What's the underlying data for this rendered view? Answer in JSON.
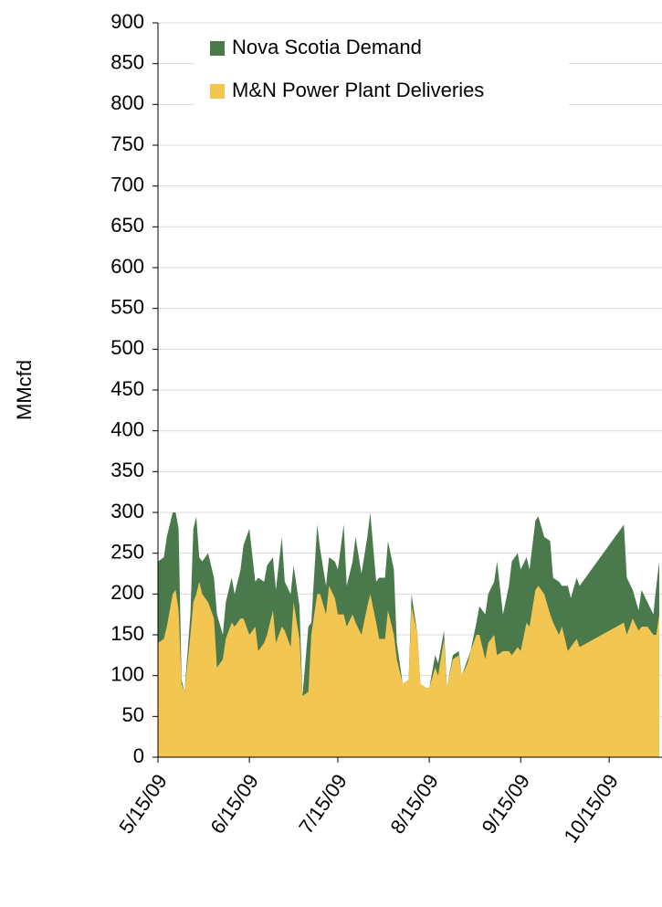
{
  "chart_data": {
    "type": "area",
    "y_label": "MMcfd",
    "x": [
      "2009-05-15",
      "2009-05-17",
      "2009-05-18",
      "2009-05-20",
      "2009-05-21",
      "2009-05-22",
      "2009-05-23",
      "2009-05-24",
      "2009-05-26",
      "2009-05-27",
      "2009-05-28",
      "2009-05-29",
      "2009-05-30",
      "2009-06-01",
      "2009-06-03",
      "2009-06-04",
      "2009-06-06",
      "2009-06-07",
      "2009-06-09",
      "2009-06-10",
      "2009-06-12",
      "2009-06-13",
      "2009-06-15",
      "2009-06-17",
      "2009-06-18",
      "2009-06-20",
      "2009-06-21",
      "2009-06-23",
      "2009-06-24",
      "2009-06-26",
      "2009-06-27",
      "2009-06-29",
      "2009-06-30",
      "2009-07-02",
      "2009-07-03",
      "2009-07-05",
      "2009-07-06",
      "2009-07-08",
      "2009-07-09",
      "2009-07-11",
      "2009-07-12",
      "2009-07-14",
      "2009-07-15",
      "2009-07-17",
      "2009-07-18",
      "2009-07-20",
      "2009-07-21",
      "2009-07-23",
      "2009-07-25",
      "2009-07-26",
      "2009-07-28",
      "2009-07-29",
      "2009-07-31",
      "2009-08-01",
      "2009-08-03",
      "2009-08-04",
      "2009-08-06",
      "2009-08-08",
      "2009-08-09",
      "2009-08-11",
      "2009-08-12",
      "2009-08-14",
      "2009-08-15",
      "2009-08-17",
      "2009-08-18",
      "2009-08-20",
      "2009-08-21",
      "2009-08-23",
      "2009-08-25",
      "2009-08-26",
      "2009-08-28",
      "2009-08-29",
      "2009-08-31",
      "2009-09-01",
      "2009-09-03",
      "2009-09-04",
      "2009-09-06",
      "2009-09-07",
      "2009-09-09",
      "2009-09-11",
      "2009-09-12",
      "2009-09-14",
      "2009-09-15",
      "2009-09-17",
      "2009-09-18",
      "2009-09-20",
      "2009-09-21",
      "2009-09-23",
      "2009-09-25",
      "2009-09-26",
      "2009-09-28",
      "2009-09-29",
      "2009-10-01",
      "2009-10-02",
      "2009-10-04",
      "2009-10-05",
      "2009-10-20",
      "2009-10-21",
      "2009-10-23",
      "2009-10-25",
      "2009-10-26",
      "2009-10-28",
      "2009-10-30",
      "2009-10-31",
      "2009-11-01"
    ],
    "series": [
      {
        "name": "Nova Scotia Demand",
        "color": "#4a7a4c",
        "values": [
          240,
          245,
          270,
          300,
          300,
          280,
          95,
          80,
          175,
          280,
          295,
          245,
          240,
          250,
          220,
          175,
          150,
          190,
          220,
          200,
          230,
          260,
          280,
          215,
          220,
          215,
          235,
          245,
          205,
          270,
          215,
          200,
          235,
          185,
          75,
          160,
          165,
          285,
          255,
          210,
          245,
          240,
          230,
          285,
          210,
          240,
          270,
          225,
          270,
          300,
          215,
          220,
          220,
          265,
          230,
          140,
          90,
          95,
          200,
          150,
          90,
          85,
          85,
          125,
          115,
          155,
          85,
          125,
          130,
          100,
          120,
          130,
          165,
          185,
          175,
          200,
          215,
          240,
          175,
          210,
          240,
          250,
          230,
          245,
          230,
          290,
          295,
          270,
          265,
          220,
          215,
          210,
          210,
          195,
          220,
          210,
          285,
          220,
          205,
          180,
          205,
          190,
          175,
          210,
          240
        ]
      },
      {
        "name": "M&N Power Plant Deliveries",
        "color": "#f3c652",
        "values": [
          140,
          145,
          160,
          200,
          205,
          180,
          90,
          80,
          150,
          190,
          200,
          215,
          200,
          190,
          170,
          110,
          120,
          145,
          165,
          160,
          170,
          170,
          150,
          160,
          130,
          140,
          150,
          180,
          140,
          160,
          155,
          135,
          190,
          145,
          75,
          80,
          150,
          200,
          200,
          175,
          210,
          195,
          175,
          175,
          160,
          175,
          165,
          150,
          185,
          200,
          165,
          145,
          145,
          180,
          150,
          120,
          90,
          95,
          185,
          150,
          90,
          85,
          85,
          110,
          100,
          145,
          85,
          120,
          125,
          100,
          115,
          130,
          150,
          150,
          120,
          140,
          150,
          125,
          130,
          130,
          125,
          135,
          130,
          165,
          160,
          205,
          210,
          200,
          175,
          165,
          150,
          160,
          130,
          135,
          145,
          135,
          165,
          150,
          170,
          155,
          160,
          160,
          150,
          150,
          175
        ]
      }
    ],
    "xlim": [
      "2009-05-15",
      "2009-11-01"
    ],
    "xticks": [
      {
        "value": "2009-05-15",
        "label": "5/15/09"
      },
      {
        "value": "2009-06-15",
        "label": "6/15/09"
      },
      {
        "value": "2009-07-15",
        "label": "7/15/09"
      },
      {
        "value": "2009-08-15",
        "label": "8/15/09"
      },
      {
        "value": "2009-09-15",
        "label": "9/15/09"
      },
      {
        "value": "2009-10-15",
        "label": "10/15/09"
      }
    ],
    "ylim": [
      0,
      900
    ],
    "yticks": [
      0,
      50,
      100,
      150,
      200,
      250,
      300,
      350,
      400,
      450,
      500,
      550,
      600,
      650,
      700,
      750,
      800,
      850,
      900
    ],
    "grid": true,
    "legend": "top-left"
  }
}
